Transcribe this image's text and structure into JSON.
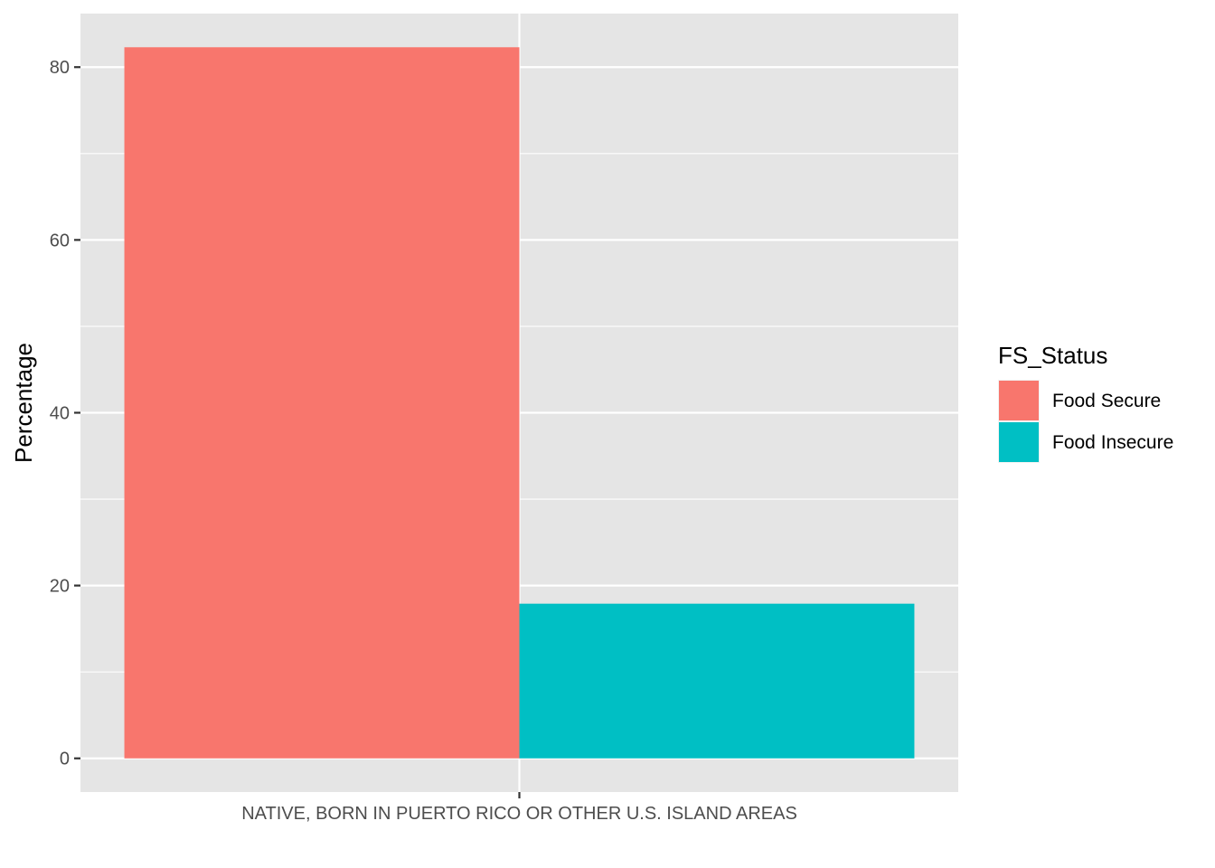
{
  "chart_data": {
    "type": "bar",
    "categories": [
      "NATIVE, BORN IN PUERTO RICO OR OTHER U.S. ISLAND AREAS"
    ],
    "series": [
      {
        "name": "Food Secure",
        "values": [
          82.3
        ],
        "color": "#F8766D"
      },
      {
        "name": "Food Insecure",
        "values": [
          17.9
        ],
        "color": "#00BFC4"
      }
    ],
    "title": "",
    "xlabel": "",
    "ylabel": "Percentage",
    "ylim": [
      -3.9,
      86.2
    ],
    "yticks": [
      0,
      20,
      40,
      60,
      80
    ],
    "ytick_labels": [
      "0",
      "20",
      "40",
      "60",
      "80"
    ],
    "grid": true,
    "legend": {
      "title": "FS_Status",
      "position": "right",
      "items": [
        "Food Secure",
        "Food Insecure"
      ]
    },
    "colors": {
      "panel": "#E5E5E5",
      "gridline": "#FFFFFF",
      "tick_text": "#4D4D4D"
    }
  }
}
